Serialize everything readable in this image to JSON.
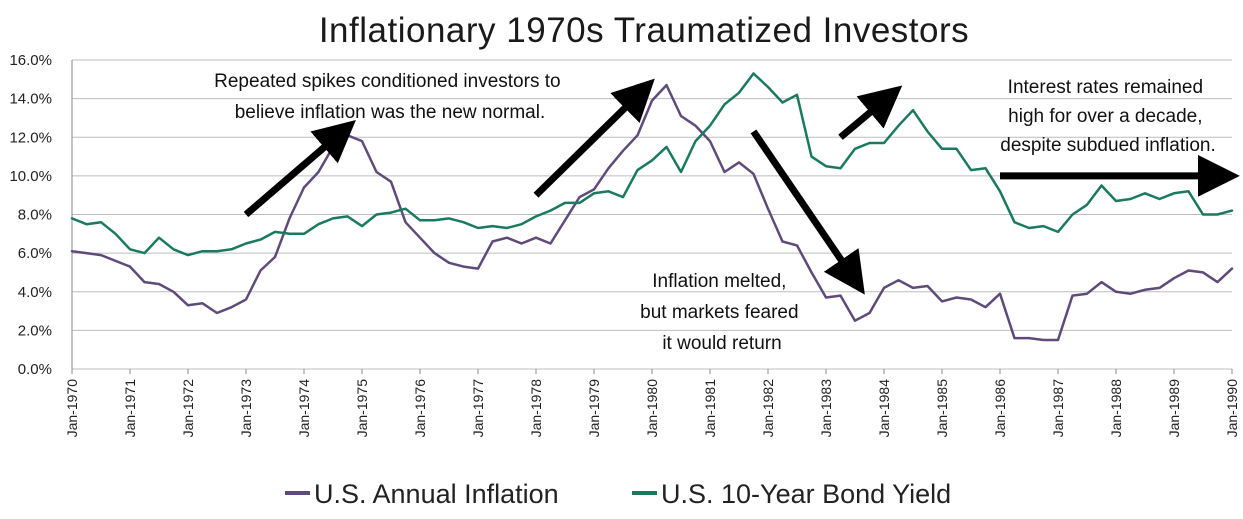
{
  "chart_data": {
    "type": "line",
    "title": "Inflationary 1970s Traumatized Investors",
    "xlabel": "",
    "ylabel": "",
    "ylim": [
      0,
      16
    ],
    "grid": "horizontal",
    "legend_position": "bottom",
    "y_ticks": [
      "0.0%",
      "2.0%",
      "4.0%",
      "6.0%",
      "8.0%",
      "10.0%",
      "12.0%",
      "14.0%",
      "16.0%"
    ],
    "x_ticks": [
      "Jan-1970",
      "Jan-1971",
      "Jan-1972",
      "Jan-1973",
      "Jan-1974",
      "Jan-1975",
      "Jan-1976",
      "Jan-1977",
      "Jan-1978",
      "Jan-1979",
      "Jan-1980",
      "Jan-1981",
      "Jan-1982",
      "Jan-1983",
      "Jan-1984",
      "Jan-1985",
      "Jan-1986",
      "Jan-1987",
      "Jan-1988",
      "Jan-1989",
      "Jan-1990"
    ],
    "series": [
      {
        "name": "U.S. Annual Inflation",
        "color": "#5e4b7a",
        "points": [
          [
            "1970-01",
            6.1
          ],
          [
            "1970-04",
            6.0
          ],
          [
            "1970-07",
            5.9
          ],
          [
            "1970-10",
            5.6
          ],
          [
            "1971-01",
            5.3
          ],
          [
            "1971-04",
            4.5
          ],
          [
            "1971-07",
            4.4
          ],
          [
            "1971-10",
            4.0
          ],
          [
            "1972-01",
            3.3
          ],
          [
            "1972-04",
            3.4
          ],
          [
            "1972-07",
            2.9
          ],
          [
            "1972-10",
            3.2
          ],
          [
            "1973-01",
            3.6
          ],
          [
            "1973-04",
            5.1
          ],
          [
            "1973-07",
            5.8
          ],
          [
            "1973-10",
            7.8
          ],
          [
            "1974-01",
            9.4
          ],
          [
            "1974-04",
            10.2
          ],
          [
            "1974-07",
            11.5
          ],
          [
            "1974-10",
            12.1
          ],
          [
            "1975-01",
            11.8
          ],
          [
            "1975-04",
            10.2
          ],
          [
            "1975-07",
            9.7
          ],
          [
            "1975-10",
            7.6
          ],
          [
            "1976-01",
            6.8
          ],
          [
            "1976-04",
            6.0
          ],
          [
            "1976-07",
            5.5
          ],
          [
            "1976-10",
            5.3
          ],
          [
            "1977-01",
            5.2
          ],
          [
            "1977-04",
            6.6
          ],
          [
            "1977-07",
            6.8
          ],
          [
            "1977-10",
            6.5
          ],
          [
            "1978-01",
            6.8
          ],
          [
            "1978-04",
            6.5
          ],
          [
            "1978-07",
            7.7
          ],
          [
            "1978-10",
            8.9
          ],
          [
            "1979-01",
            9.3
          ],
          [
            "1979-04",
            10.4
          ],
          [
            "1979-07",
            11.3
          ],
          [
            "1979-10",
            12.1
          ],
          [
            "1980-01",
            13.9
          ],
          [
            "1980-04",
            14.7
          ],
          [
            "1980-07",
            13.1
          ],
          [
            "1980-10",
            12.6
          ],
          [
            "1981-01",
            11.8
          ],
          [
            "1981-04",
            10.2
          ],
          [
            "1981-07",
            10.7
          ],
          [
            "1981-10",
            10.1
          ],
          [
            "1982-01",
            8.3
          ],
          [
            "1982-04",
            6.6
          ],
          [
            "1982-07",
            6.4
          ],
          [
            "1982-10",
            5.0
          ],
          [
            "1983-01",
            3.7
          ],
          [
            "1983-04",
            3.8
          ],
          [
            "1983-07",
            2.5
          ],
          [
            "1983-10",
            2.9
          ],
          [
            "1984-01",
            4.2
          ],
          [
            "1984-04",
            4.6
          ],
          [
            "1984-07",
            4.2
          ],
          [
            "1984-10",
            4.3
          ],
          [
            "1985-01",
            3.5
          ],
          [
            "1985-04",
            3.7
          ],
          [
            "1985-07",
            3.6
          ],
          [
            "1985-10",
            3.2
          ],
          [
            "1986-01",
            3.9
          ],
          [
            "1986-04",
            1.6
          ],
          [
            "1986-07",
            1.6
          ],
          [
            "1986-10",
            1.5
          ],
          [
            "1987-01",
            1.5
          ],
          [
            "1987-04",
            3.8
          ],
          [
            "1987-07",
            3.9
          ],
          [
            "1987-10",
            4.5
          ],
          [
            "1988-01",
            4.0
          ],
          [
            "1988-04",
            3.9
          ],
          [
            "1988-07",
            4.1
          ],
          [
            "1988-10",
            4.2
          ],
          [
            "1989-01",
            4.7
          ],
          [
            "1989-04",
            5.1
          ],
          [
            "1989-07",
            5.0
          ],
          [
            "1989-10",
            4.5
          ],
          [
            "1990-01",
            5.2
          ]
        ]
      },
      {
        "name": "U.S. 10-Year Bond Yield",
        "color": "#1a7a5e",
        "points": [
          [
            "1970-01",
            7.8
          ],
          [
            "1970-04",
            7.5
          ],
          [
            "1970-07",
            7.6
          ],
          [
            "1970-10",
            7.0
          ],
          [
            "1971-01",
            6.2
          ],
          [
            "1971-04",
            6.0
          ],
          [
            "1971-07",
            6.8
          ],
          [
            "1971-10",
            6.2
          ],
          [
            "1972-01",
            5.9
          ],
          [
            "1972-04",
            6.1
          ],
          [
            "1972-07",
            6.1
          ],
          [
            "1972-10",
            6.2
          ],
          [
            "1973-01",
            6.5
          ],
          [
            "1973-04",
            6.7
          ],
          [
            "1973-07",
            7.1
          ],
          [
            "1973-10",
            7.0
          ],
          [
            "1974-01",
            7.0
          ],
          [
            "1974-04",
            7.5
          ],
          [
            "1974-07",
            7.8
          ],
          [
            "1974-10",
            7.9
          ],
          [
            "1975-01",
            7.4
          ],
          [
            "1975-04",
            8.0
          ],
          [
            "1975-07",
            8.1
          ],
          [
            "1975-10",
            8.3
          ],
          [
            "1976-01",
            7.7
          ],
          [
            "1976-04",
            7.7
          ],
          [
            "1976-07",
            7.8
          ],
          [
            "1976-10",
            7.6
          ],
          [
            "1977-01",
            7.3
          ],
          [
            "1977-04",
            7.4
          ],
          [
            "1977-07",
            7.3
          ],
          [
            "1977-10",
            7.5
          ],
          [
            "1978-01",
            7.9
          ],
          [
            "1978-04",
            8.2
          ],
          [
            "1978-07",
            8.6
          ],
          [
            "1978-10",
            8.6
          ],
          [
            "1979-01",
            9.1
          ],
          [
            "1979-04",
            9.2
          ],
          [
            "1979-07",
            8.9
          ],
          [
            "1979-10",
            10.3
          ],
          [
            "1980-01",
            10.8
          ],
          [
            "1980-04",
            11.5
          ],
          [
            "1980-07",
            10.2
          ],
          [
            "1980-10",
            11.8
          ],
          [
            "1981-01",
            12.6
          ],
          [
            "1981-04",
            13.7
          ],
          [
            "1981-07",
            14.3
          ],
          [
            "1981-10",
            15.3
          ],
          [
            "1982-01",
            14.6
          ],
          [
            "1982-04",
            13.8
          ],
          [
            "1982-07",
            14.2
          ],
          [
            "1982-10",
            11.0
          ],
          [
            "1983-01",
            10.5
          ],
          [
            "1983-04",
            10.4
          ],
          [
            "1983-07",
            11.4
          ],
          [
            "1983-10",
            11.7
          ],
          [
            "1984-01",
            11.7
          ],
          [
            "1984-04",
            12.6
          ],
          [
            "1984-07",
            13.4
          ],
          [
            "1984-10",
            12.3
          ],
          [
            "1985-01",
            11.4
          ],
          [
            "1985-04",
            11.4
          ],
          [
            "1985-07",
            10.3
          ],
          [
            "1985-10",
            10.4
          ],
          [
            "1986-01",
            9.2
          ],
          [
            "1986-04",
            7.6
          ],
          [
            "1986-07",
            7.3
          ],
          [
            "1986-10",
            7.4
          ],
          [
            "1987-01",
            7.1
          ],
          [
            "1987-04",
            8.0
          ],
          [
            "1987-07",
            8.5
          ],
          [
            "1987-10",
            9.5
          ],
          [
            "1988-01",
            8.7
          ],
          [
            "1988-04",
            8.8
          ],
          [
            "1988-07",
            9.1
          ],
          [
            "1988-10",
            8.8
          ],
          [
            "1989-01",
            9.1
          ],
          [
            "1989-04",
            9.2
          ],
          [
            "1989-07",
            8.0
          ],
          [
            "1989-10",
            8.0
          ],
          [
            "1990-01",
            8.2
          ]
        ]
      }
    ],
    "annotations": [
      {
        "id": "spikes",
        "lines": [
          "Repeated spikes conditioned investors to",
          "believe inflation was the new normal."
        ]
      },
      {
        "id": "melted",
        "lines": [
          "Inflation melted,",
          "but markets feared",
          "it would return"
        ]
      },
      {
        "id": "remained",
        "lines": [
          "Interest rates remained",
          "high for over a decade,",
          "despite subdued inflation."
        ]
      }
    ],
    "arrows": [
      {
        "from": [
          "1973-01",
          8.0
        ],
        "to": [
          "1974-09",
          12.3
        ]
      },
      {
        "from": [
          "1978-01",
          9.0
        ],
        "to": [
          "1979-11",
          14.4
        ]
      },
      {
        "from": [
          "1981-10",
          12.3
        ],
        "to": [
          "1983-07",
          4.6
        ]
      },
      {
        "from": [
          "1983-04",
          12.0
        ],
        "to": [
          "1984-02",
          14.1
        ]
      },
      {
        "from": [
          "1986-00",
          10.0
        ],
        "to": [
          "1989-11",
          10.0
        ]
      }
    ]
  }
}
